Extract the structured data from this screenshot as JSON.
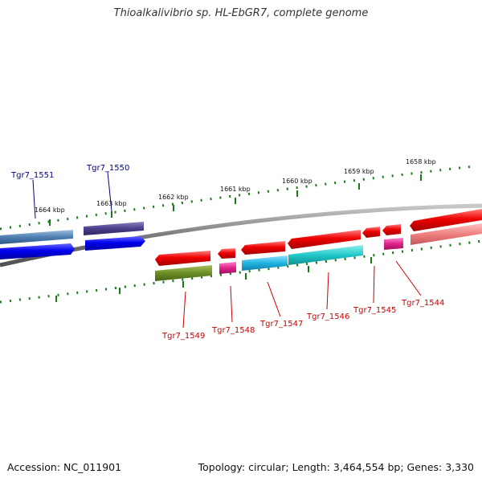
{
  "title": "Thioalkalivibrio sp. HL-EbGR7, complete genome",
  "accession": "Accession: NC_011901",
  "topology": "Topology: circular; Length: 3,464,554 bp; Genes: 3,330",
  "ticks": [
    "1664 kbp",
    "1663 kbp",
    "1662 kbp",
    "1661 kbp",
    "1660 kbp",
    "1659 kbp",
    "1658 kbp"
  ],
  "colors": {
    "backbone": "#7a7a7a",
    "tick": "#1a7a1a",
    "forward_label": "#00008b",
    "reverse_label": "#cc0000",
    "forward_gene": "#0000ee",
    "reverse_gene": "#ee0000"
  },
  "genes": [
    {
      "locus": "Tgr7_1551",
      "strand": "+",
      "label_color": "#00008b",
      "feature_color": "#4f7fb3"
    },
    {
      "locus": "Tgr7_1550",
      "strand": "+",
      "label_color": "#00008b",
      "feature_color": "#4b3f8c"
    },
    {
      "locus": "Tgr7_1549",
      "strand": "-",
      "label_color": "#cc0000",
      "feature_color": "#6b8e23"
    },
    {
      "locus": "Tgr7_1548",
      "strand": "-",
      "label_color": "#cc0000",
      "feature_color": "#e0228c"
    },
    {
      "locus": "Tgr7_1547",
      "strand": "-",
      "label_color": "#cc0000",
      "feature_color": "#20b4e0"
    },
    {
      "locus": "Tgr7_1546",
      "strand": "-",
      "label_color": "#cc0000",
      "feature_color": "#20c8c8"
    },
    {
      "locus": "Tgr7_1545",
      "strand": "-",
      "label_color": "#cc0000",
      "feature_color": "#e0228c"
    },
    {
      "locus": "Tgr7_1544",
      "strand": "-",
      "label_color": "#cc0000",
      "feature_color": "#f08080"
    }
  ]
}
